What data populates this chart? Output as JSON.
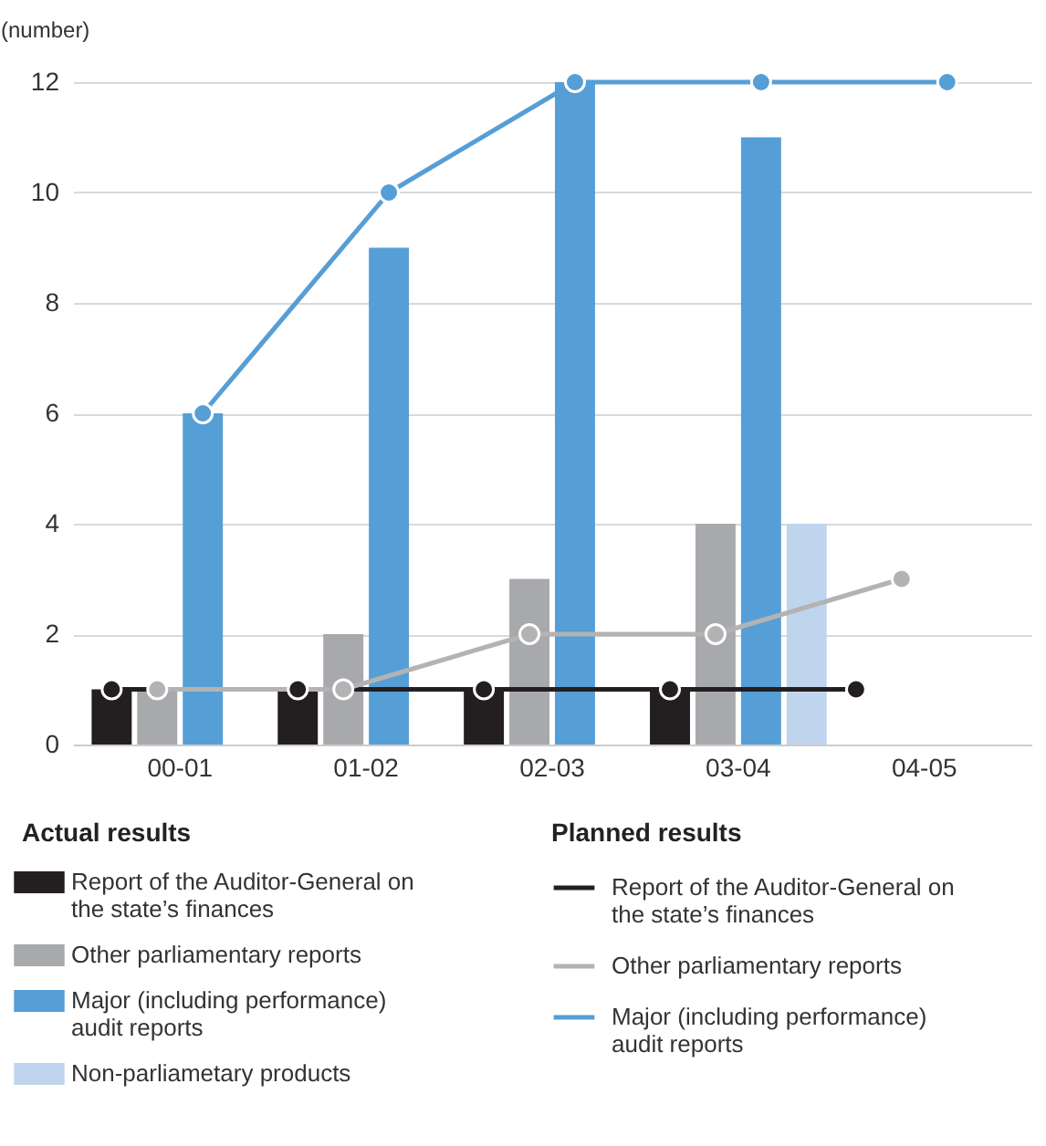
{
  "chart_data": {
    "type": "bar",
    "ylabel": "(number)",
    "legend_title": "Actual results",
    "annotations": [
      "Planned results"
    ],
    "categories": [
      "00-01",
      "01-02",
      "02-03",
      "03-04",
      "04-05"
    ],
    "series": [
      {
        "name": "Report of the Auditor-General on the state’s finances",
        "color": "#231f20",
        "values": [
          1,
          1,
          1,
          1,
          null
        ]
      },
      {
        "name": "Other parliamentary reports",
        "color": "#a7a9ac",
        "values": [
          1,
          2,
          3,
          4,
          null
        ]
      },
      {
        "name": "Major (including performance) audit reports",
        "color": "#569ed6",
        "values": [
          6,
          9,
          12,
          11,
          null
        ]
      },
      {
        "name": "Non-parliametary products",
        "color": "#bfd5ee",
        "values": [
          null,
          null,
          null,
          4,
          null
        ]
      },
      {
        "type": "line",
        "name": "Report of the Auditor-General on the state’s finances",
        "color": "#231f20",
        "values": [
          1,
          1,
          1,
          1,
          1
        ]
      },
      {
        "type": "line",
        "name": "Other parliamentary reports",
        "color": "#b3b3b3",
        "values": [
          1,
          1,
          2,
          2,
          3
        ]
      },
      {
        "type": "line",
        "name": "Major (including performance) audit reports",
        "color": "#569ed6",
        "values": [
          6,
          10,
          12,
          12,
          12
        ]
      }
    ],
    "ylim": [
      0,
      12
    ],
    "yticks": [
      0,
      2,
      4,
      6,
      8,
      10,
      12
    ],
    "grid": "y",
    "legend": "bottom",
    "marker": "circle",
    "line_style": "solid"
  }
}
